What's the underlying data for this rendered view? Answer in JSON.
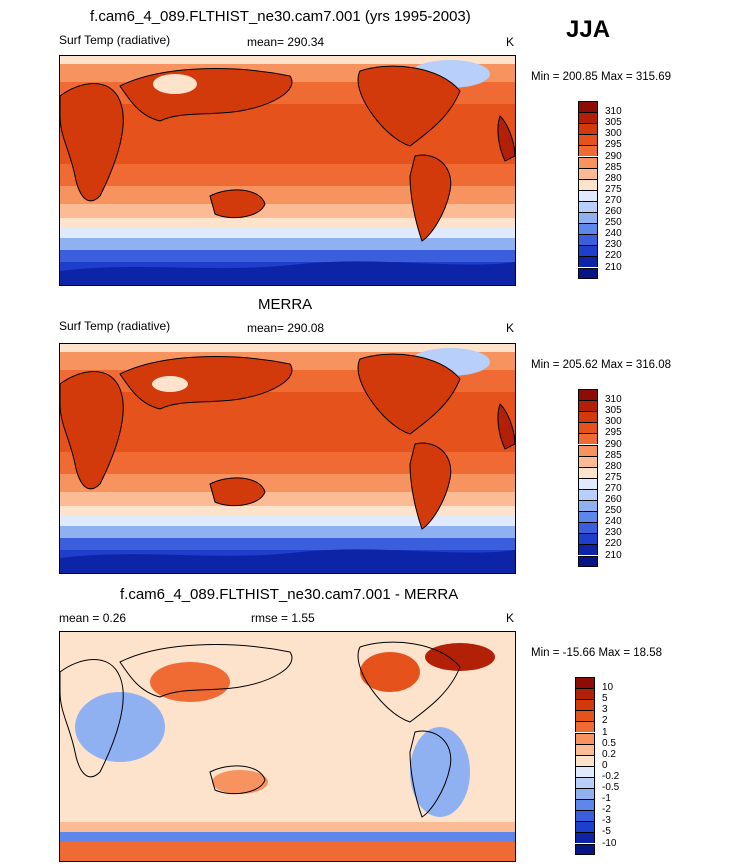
{
  "season": "JJA",
  "panels": [
    {
      "title": "f.cam6_4_089.FLTHIST_ne30.cam7.001 (yrs 1995-2003)",
      "left_label": "Surf Temp (radiative)",
      "center_label": "mean= 290.34",
      "right_label": "K",
      "minmax": "Min = 200.85 Max = 315.69"
    },
    {
      "title": "MERRA",
      "left_label": "Surf Temp (radiative)",
      "center_label": "mean= 290.08",
      "right_label": "K",
      "minmax": "Min = 205.62 Max = 316.08"
    },
    {
      "title": "f.cam6_4_089.FLTHIST_ne30.cam7.001 - MERRA",
      "left_label": "mean =   0.26",
      "center_label": "rmse =   1.55",
      "right_label": "K",
      "minmax": "Min = -15.66 Max =  18.58"
    }
  ],
  "colorbar_abs": {
    "levels": [
      "310",
      "305",
      "300",
      "295",
      "290",
      "285",
      "280",
      "275",
      "270",
      "260",
      "250",
      "240",
      "230",
      "220",
      "210"
    ],
    "colors": [
      "#8b0d05",
      "#b32008",
      "#d23a0c",
      "#e5521b",
      "#f06a34",
      "#f7935f",
      "#fbbc95",
      "#fde3cc",
      "#dfeafd",
      "#b7cffa",
      "#8fb1f2",
      "#5f87ea",
      "#3a5edc",
      "#1e3fcc",
      "#0d24a6",
      "#061586"
    ]
  },
  "colorbar_diff": {
    "levels": [
      "10",
      "5",
      "3",
      "2",
      "1",
      "0.5",
      "0.2",
      "0",
      "-0.2",
      "-0.5",
      "-1",
      "-2",
      "-3",
      "-5",
      "-10"
    ],
    "colors": [
      "#8b0d05",
      "#b32008",
      "#d23a0c",
      "#e5521b",
      "#f06a34",
      "#f7935f",
      "#fbbc95",
      "#fde3cc",
      "#dfeafd",
      "#b7cffa",
      "#8fb1f2",
      "#5f87ea",
      "#3a5edc",
      "#1e3fcc",
      "#0d24a6",
      "#061586"
    ]
  },
  "chart_data": [
    {
      "type": "heatmap",
      "title": "f.cam6_4_089.FLTHIST_ne30.cam7.001 (yrs 1995-2003)",
      "variable": "Surf Temp (radiative)",
      "units": "K",
      "mean": 290.34,
      "min": 200.85,
      "max": 315.69,
      "contour_levels": [
        210,
        220,
        230,
        240,
        250,
        260,
        270,
        275,
        280,
        285,
        290,
        295,
        300,
        305,
        310
      ]
    },
    {
      "type": "heatmap",
      "title": "MERRA",
      "variable": "Surf Temp (radiative)",
      "units": "K",
      "mean": 290.08,
      "min": 205.62,
      "max": 316.08,
      "contour_levels": [
        210,
        220,
        230,
        240,
        250,
        260,
        270,
        275,
        280,
        285,
        290,
        295,
        300,
        305,
        310
      ]
    },
    {
      "type": "heatmap",
      "title": "f.cam6_4_089.FLTHIST_ne30.cam7.001 - MERRA",
      "units": "K",
      "mean": 0.26,
      "rmse": 1.55,
      "min": -15.66,
      "max": 18.58,
      "contour_levels": [
        -10,
        -5,
        -3,
        -2,
        -1,
        -0.5,
        -0.2,
        0,
        0.2,
        0.5,
        1,
        2,
        3,
        5,
        10
      ]
    }
  ]
}
